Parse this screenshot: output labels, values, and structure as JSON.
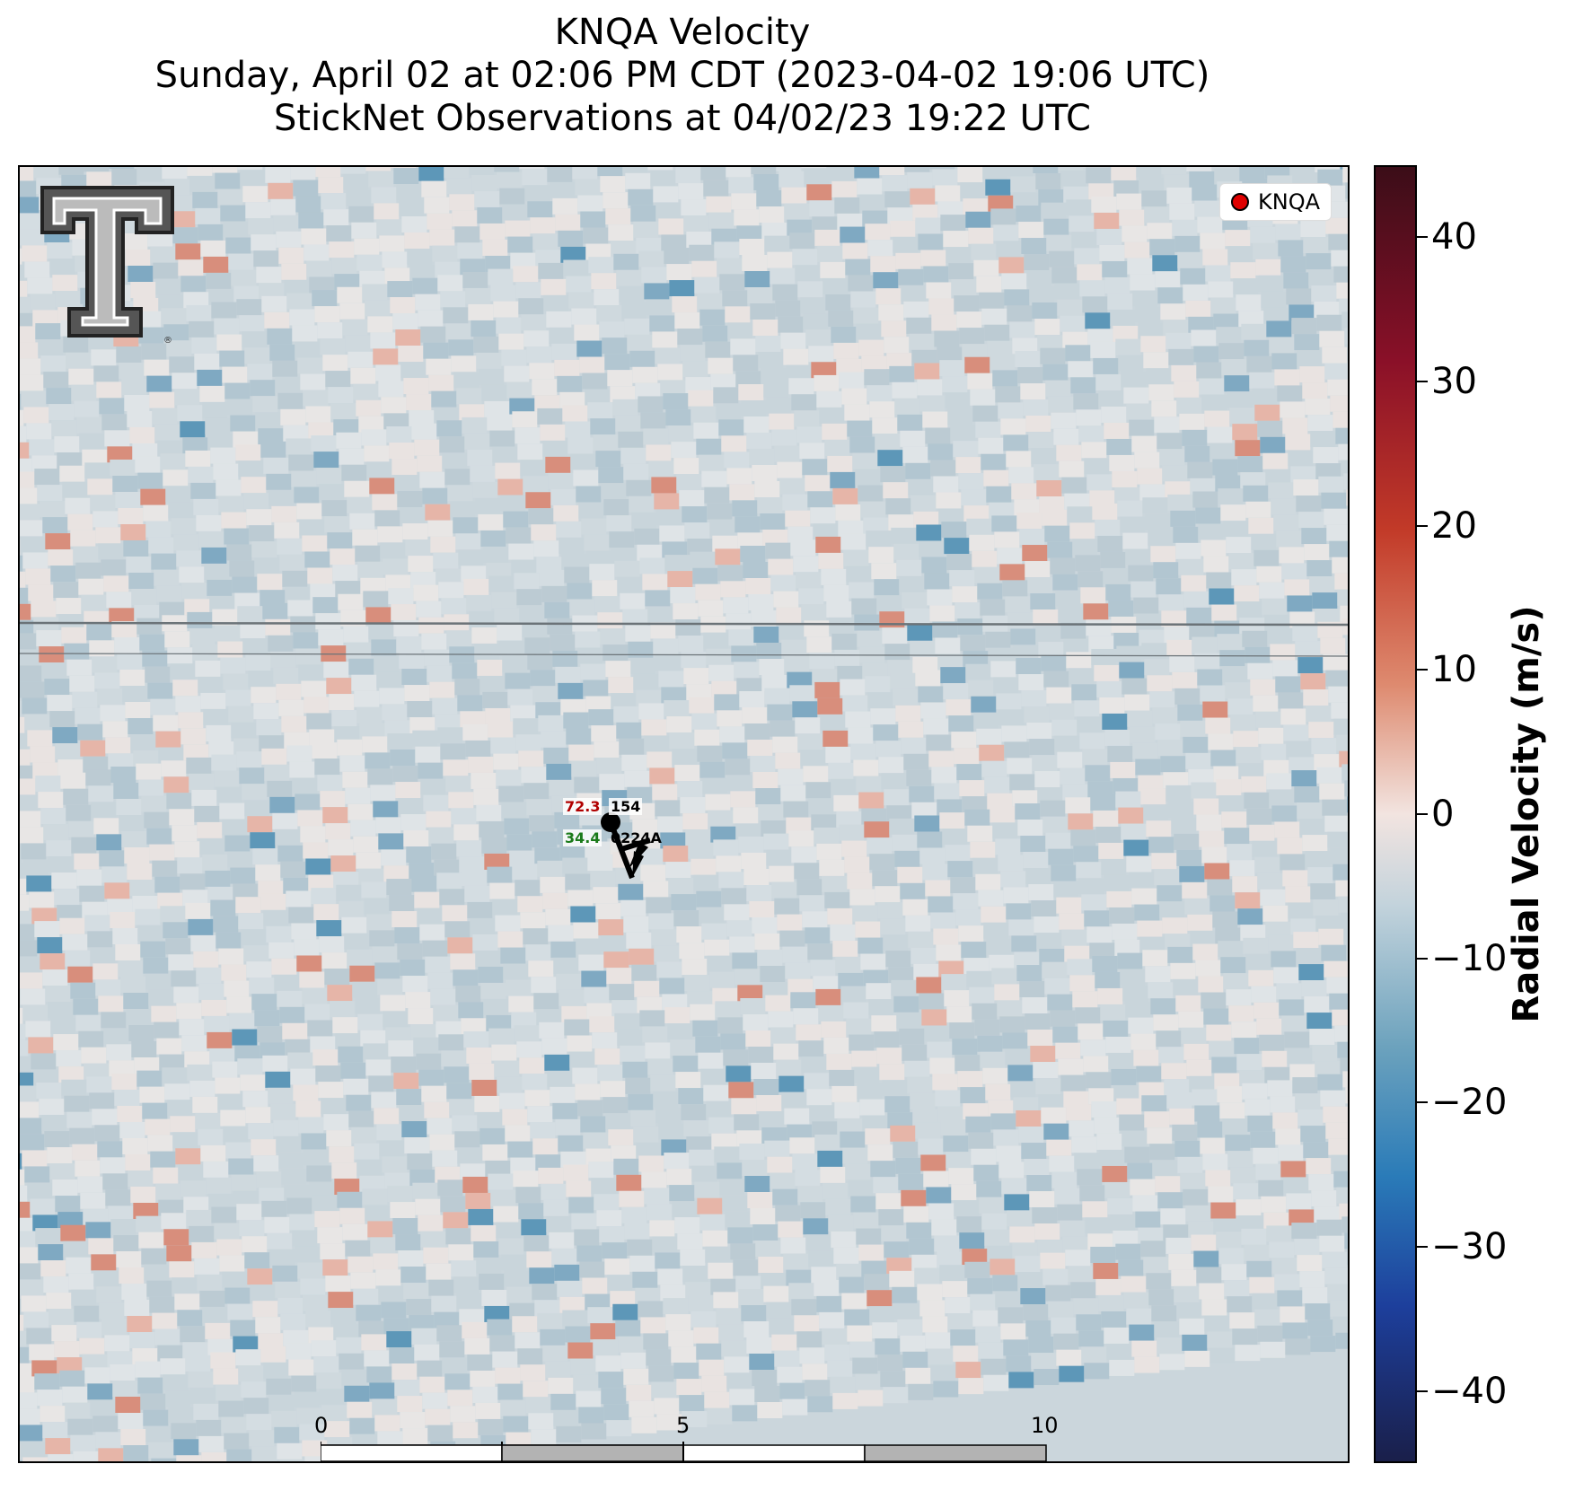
{
  "title_lines": [
    "KNQA Velocity",
    "Sunday, April 02 at 02:06 PM CDT (2023-04-02 19:06 UTC)",
    "StickNet Observations at 04/02/23 19:22 UTC"
  ],
  "legend": {
    "label": "KNQA",
    "marker_color": "#e00000"
  },
  "station": {
    "temperature": "72.3",
    "pressure": "154",
    "dewpoint": "34.4",
    "id": "0224A",
    "temp_color": "#b00000",
    "dew_color": "#1a7a1a"
  },
  "scalebar": {
    "ticks": [
      "0",
      "5",
      "10"
    ],
    "unit": "km"
  },
  "colorbar": {
    "label": "Radial Velocity (m/s)",
    "ticks": [
      "40",
      "30",
      "20",
      "10",
      "0",
      "−10",
      "−20",
      "−30",
      "−40"
    ],
    "range": [
      -45,
      45
    ]
  },
  "logo": {
    "name": "texas-tech-double-t-logo"
  }
}
